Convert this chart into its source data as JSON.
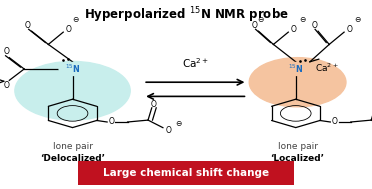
{
  "title": "Hyperpolarized $^{15}$N NMR probe",
  "title_fontsize": 8.5,
  "bg_color": "#ffffff",
  "banner_text": "Large chemical shift change",
  "banner_color": "#c0111f",
  "banner_text_color": "#ffffff",
  "banner_fontsize": 7.5,
  "arrow_label": "Ca$^{2+}$",
  "left_highlight_color": "#c8eeec",
  "right_highlight_color": "#f5c4a0",
  "N_color": "#1a6bbf",
  "lone_pair_label_left_1": "lone pair",
  "lone_pair_label_left_2": "‘Delocalized’",
  "lone_pair_label_right_1": "lone pair",
  "lone_pair_label_right_2": "‘Localized’",
  "label_fontsize": 6.5,
  "figw": 3.72,
  "figh": 1.89,
  "dpi": 100
}
